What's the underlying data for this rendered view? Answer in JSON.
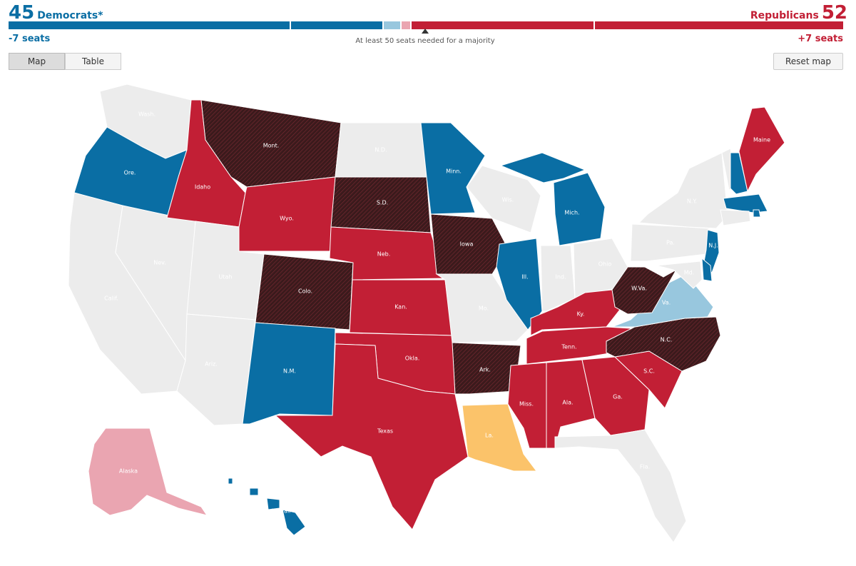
{
  "header": {
    "dem_count": "45",
    "dem_label": "Democrats*",
    "rep_label": "Republicans",
    "rep_count": "52",
    "dem_change": "-7 seats",
    "rep_change": "+7 seats",
    "majority_note": "At least 50 seats needed for a majority"
  },
  "controls": {
    "map_label": "Map",
    "table_label": "Table",
    "reset_label": "Reset map"
  },
  "colors": {
    "dem": "#0a6ea4",
    "lean_dem": "#98c7de",
    "lean_rep": "#eaa5b1",
    "rep": "#c21f35",
    "tossup": "#3b1a1c",
    "runoff": "#fbc36a",
    "no_race": "#ececec"
  },
  "seat_bar": [
    {
      "party": "dem",
      "seats": 34
    },
    {
      "party": "dem",
      "seats": 11
    },
    {
      "party": "lean_dem",
      "seats": 2
    },
    {
      "party": "lean_rep",
      "seats": 1
    },
    {
      "party": "rep",
      "seats": 22
    },
    {
      "party": "rep",
      "seats": 30
    }
  ],
  "states": [
    {
      "abbr": "WA",
      "label": "Wash.",
      "status": "no_race"
    },
    {
      "abbr": "OR",
      "label": "Ore.",
      "status": "dem"
    },
    {
      "abbr": "CA",
      "label": "Calif.",
      "status": "no_race"
    },
    {
      "abbr": "NV",
      "label": "Nev.",
      "status": "no_race"
    },
    {
      "abbr": "ID",
      "label": "Idaho",
      "status": "rep"
    },
    {
      "abbr": "MT",
      "label": "Mont.",
      "status": "tossup"
    },
    {
      "abbr": "WY",
      "label": "Wyo.",
      "status": "rep"
    },
    {
      "abbr": "UT",
      "label": "Utah",
      "status": "no_race"
    },
    {
      "abbr": "AZ",
      "label": "Ariz.",
      "status": "no_race"
    },
    {
      "abbr": "CO",
      "label": "Colo.",
      "status": "tossup"
    },
    {
      "abbr": "NM",
      "label": "N.M.",
      "status": "dem"
    },
    {
      "abbr": "ND",
      "label": "N.D.",
      "status": "no_race"
    },
    {
      "abbr": "SD",
      "label": "S.D.",
      "status": "tossup"
    },
    {
      "abbr": "NE",
      "label": "Neb.",
      "status": "rep"
    },
    {
      "abbr": "KS",
      "label": "Kan.",
      "status": "rep"
    },
    {
      "abbr": "OK",
      "label": "Okla.",
      "status": "rep"
    },
    {
      "abbr": "TX",
      "label": "Texas",
      "status": "rep"
    },
    {
      "abbr": "MN",
      "label": "Minn.",
      "status": "dem"
    },
    {
      "abbr": "IA",
      "label": "Iowa",
      "status": "tossup"
    },
    {
      "abbr": "MO",
      "label": "Mo.",
      "status": "no_race"
    },
    {
      "abbr": "AR",
      "label": "Ark.",
      "status": "tossup"
    },
    {
      "abbr": "LA",
      "label": "La.",
      "status": "runoff"
    },
    {
      "abbr": "WI",
      "label": "Wis.",
      "status": "no_race"
    },
    {
      "abbr": "IL",
      "label": "Ill.",
      "status": "dem"
    },
    {
      "abbr": "MI",
      "label": "Mich.",
      "status": "dem"
    },
    {
      "abbr": "IN",
      "label": "Ind.",
      "status": "no_race"
    },
    {
      "abbr": "OH",
      "label": "Ohio",
      "status": "no_race"
    },
    {
      "abbr": "KY",
      "label": "Ky.",
      "status": "rep"
    },
    {
      "abbr": "TN",
      "label": "Tenn.",
      "status": "rep"
    },
    {
      "abbr": "MS",
      "label": "Miss.",
      "status": "rep"
    },
    {
      "abbr": "AL",
      "label": "Ala.",
      "status": "rep"
    },
    {
      "abbr": "GA",
      "label": "Ga.",
      "status": "rep"
    },
    {
      "abbr": "FL",
      "label": "Fla.",
      "status": "no_race"
    },
    {
      "abbr": "SC",
      "label": "S.C.",
      "status": "rep"
    },
    {
      "abbr": "NC",
      "label": "N.C.",
      "status": "tossup"
    },
    {
      "abbr": "VA",
      "label": "Va.",
      "status": "lean_dem"
    },
    {
      "abbr": "WV",
      "label": "W.Va.",
      "status": "tossup"
    },
    {
      "abbr": "PA",
      "label": "Pa.",
      "status": "no_race"
    },
    {
      "abbr": "NY",
      "label": "N.Y.",
      "status": "no_race"
    },
    {
      "abbr": "NJ",
      "label": "N.J.",
      "status": "dem"
    },
    {
      "abbr": "DE",
      "label": "",
      "status": "dem"
    },
    {
      "abbr": "MD",
      "label": "Md.",
      "status": "no_race"
    },
    {
      "abbr": "VT",
      "label": "",
      "status": "no_race"
    },
    {
      "abbr": "NH",
      "label": "",
      "status": "dem"
    },
    {
      "abbr": "MA",
      "label": "",
      "status": "dem"
    },
    {
      "abbr": "RI",
      "label": "",
      "status": "dem"
    },
    {
      "abbr": "CT",
      "label": "",
      "status": "no_race"
    },
    {
      "abbr": "ME",
      "label": "Maine",
      "status": "rep"
    },
    {
      "abbr": "AK",
      "label": "Alaska",
      "status": "lean_rep"
    },
    {
      "abbr": "HI",
      "label": "Hawaii",
      "status": "dem"
    }
  ]
}
